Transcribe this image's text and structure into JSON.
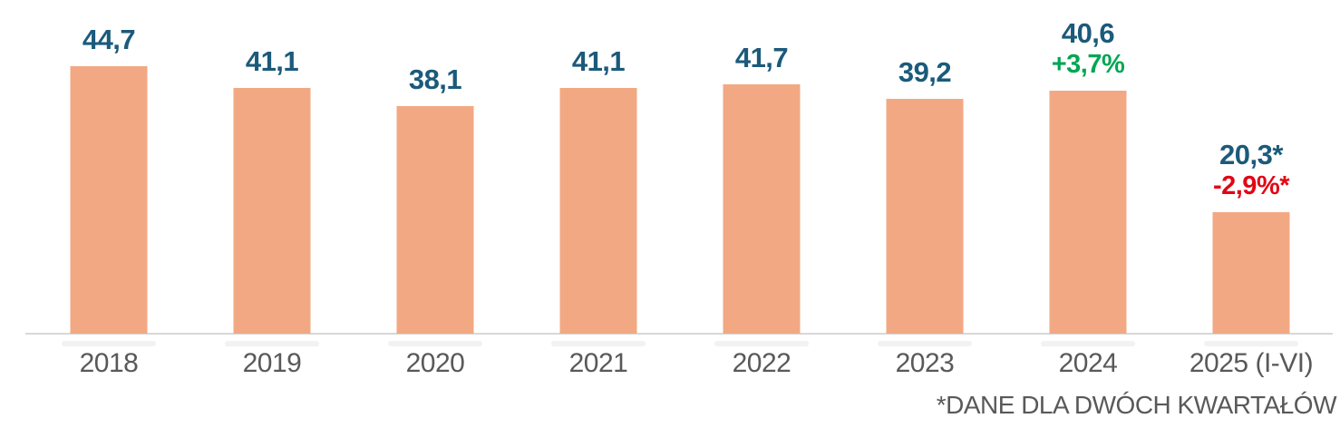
{
  "chart_data": {
    "type": "bar",
    "categories": [
      "2018",
      "2019",
      "2020",
      "2021",
      "2022",
      "2023",
      "2024",
      "2025 (I-VI)"
    ],
    "values": [
      44.7,
      41.1,
      38.1,
      41.1,
      41.7,
      39.2,
      40.6,
      20.3
    ],
    "value_labels": [
      "44,7",
      "41,1",
      "38,1",
      "41,1",
      "41,7",
      "39,2",
      "40,6",
      "20,3*"
    ],
    "change_labels": [
      "",
      "",
      "",
      "",
      "",
      "",
      "+3,7%",
      "-2,9%*"
    ],
    "change_types": [
      "",
      "",
      "",
      "",
      "",
      "",
      "positive",
      "negative"
    ],
    "title": "",
    "xlabel": "",
    "ylabel": "",
    "ylim": [
      0,
      45
    ],
    "grid": "off",
    "legend": "none",
    "footnote": "*DANE DLA DWÓCH KWARTAŁÓW",
    "colors": {
      "bar": "#F2A983",
      "value_label": "#1B5A7A",
      "positive": "#00A651",
      "negative": "#E30613",
      "axis_label": "#595959",
      "axis_line": "#D8D8D8",
      "footnote": "#595959"
    }
  }
}
